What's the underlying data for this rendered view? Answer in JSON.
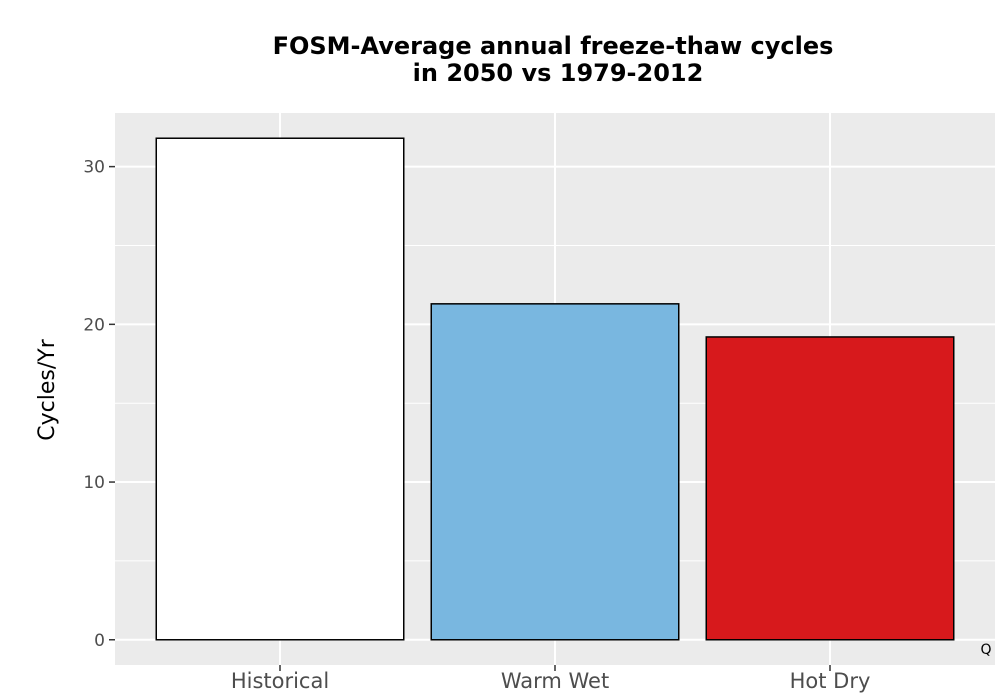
{
  "chart_data": {
    "type": "bar",
    "title_lines": [
      "FOSM-Average annual freeze-thaw cycles",
      "in 2050 vs 1979-2012"
    ],
    "xlabel": "",
    "ylabel": "Cycles/Yr",
    "categories": [
      "Historical",
      "Warm Wet",
      "Hot Dry"
    ],
    "values": [
      31.8,
      21.3,
      19.2
    ],
    "bar_colors": [
      "#ffffff",
      "#79b7e0",
      "#d7191c"
    ],
    "bar_outline": "#000000",
    "panel_background": "#ebebeb",
    "grid_color": "#ffffff",
    "ylim": [
      -1.6,
      33.4
    ],
    "yticks": [
      0,
      10,
      20,
      30
    ],
    "grid": true,
    "legend": "none"
  },
  "corner_label": "Q"
}
